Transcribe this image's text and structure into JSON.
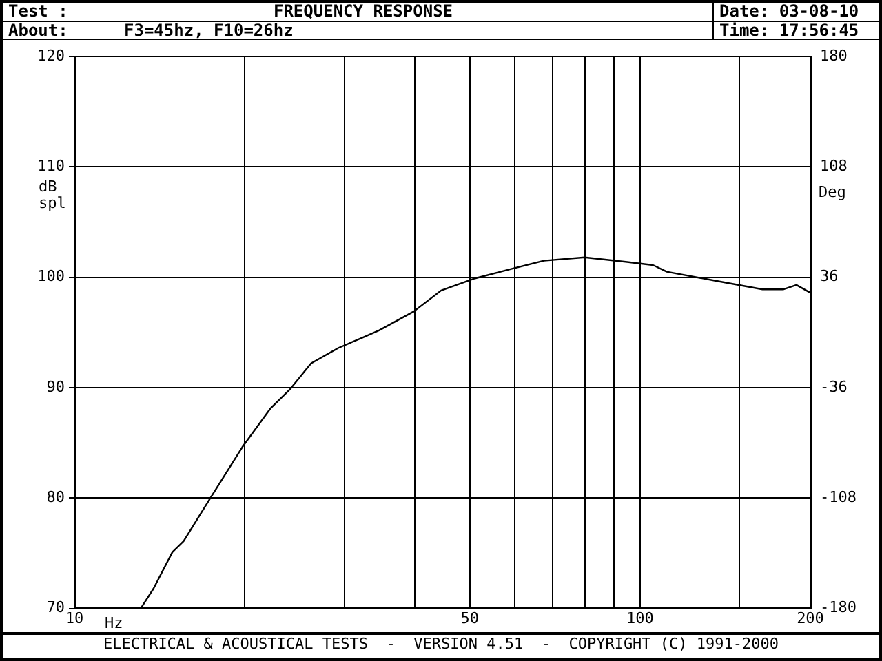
{
  "chart_data": {
    "type": "line",
    "title": "FREQUENCY RESPONSE",
    "xlabel": "Hz",
    "ylabel": "dB spl",
    "y2label": "Deg",
    "annotations": [
      "Test :",
      "About:",
      "F3=45hz, F10=26hz",
      "Date: 03-08-10",
      "Time: 17:56:45",
      "ELECTRICAL & ACOUSTICAL TESTS  -  VERSION 4.51  -  COPYRIGHT (C) 1991-2000"
    ],
    "log": "x",
    "grid": true,
    "legend": false,
    "marker": "none",
    "line_style": "solid",
    "xlim": [
      10,
      200
    ],
    "xticks": [
      10,
      {
        "value": 20,
        "label": null
      },
      {
        "value": 30,
        "label": null
      },
      {
        "value": 40,
        "label": null
      },
      50,
      {
        "value": 60,
        "label": null
      },
      {
        "value": 70,
        "label": null
      },
      {
        "value": 80,
        "label": null
      },
      {
        "value": 90,
        "label": null
      },
      100,
      {
        "value": 150,
        "label": null
      },
      200
    ],
    "ylim": [
      70,
      120
    ],
    "yticks": [
      70,
      80,
      90,
      100,
      110,
      120
    ],
    "y2lim": [
      -180,
      180
    ],
    "y2ticks": [
      -180,
      -108,
      -36,
      36,
      108,
      180
    ],
    "series": [
      {
        "color": "#000000",
        "x": [
          13.1,
          13.8,
          14.9,
          15.6,
          17.3,
          19.8,
          22.2,
          24.1,
          26.2,
          29.3,
          32.2,
          34.6,
          39.8,
          44.5,
          51.1,
          58.7,
          67.6,
          79.8,
          94.3,
          105.4,
          111.5,
          135.5,
          164.6,
          179,
          189,
          200
        ],
        "values": [
          70,
          71.8,
          75.1,
          76.1,
          79.8,
          84.6,
          88.1,
          89.9,
          92.2,
          93.6,
          94.5,
          95.2,
          96.9,
          98.8,
          99.9,
          100.7,
          101.5,
          101.8,
          101.4,
          101.1,
          100.5,
          99.7,
          98.9,
          98.9,
          99.3,
          98.6
        ]
      }
    ]
  }
}
